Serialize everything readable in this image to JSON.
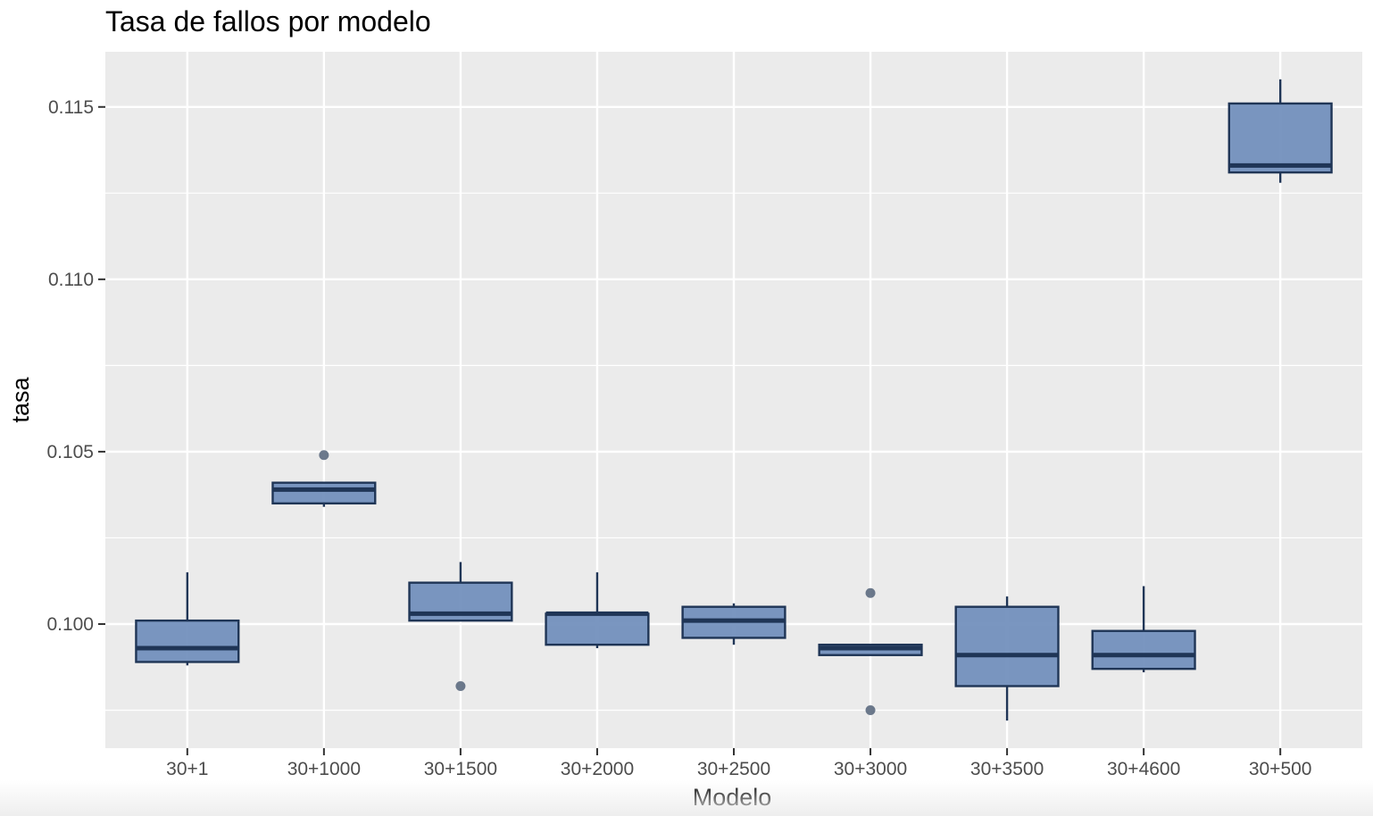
{
  "chart_data": {
    "type": "box",
    "title": "Tasa de fallos por modelo",
    "xlabel": "Modelo",
    "ylabel": "tasa",
    "ylim": [
      0.0964,
      0.1166
    ],
    "y_ticks": [
      "0.100",
      "0.105",
      "0.110",
      "0.115"
    ],
    "grid": true,
    "colors": {
      "panel_background": "#ebebeb",
      "grid": "#ffffff",
      "box_fill": "#7390bd",
      "box_line": "#1f3556",
      "outlier": "#5c6a80"
    },
    "categories": [
      "30+1",
      "30+1000",
      "30+1500",
      "30+2000",
      "30+2500",
      "30+3000",
      "30+3500",
      "30+4600",
      "30+500"
    ],
    "boxes": [
      {
        "category": "30+1",
        "whisker_low": 0.0988,
        "q1": 0.0989,
        "median": 0.0993,
        "q3": 0.1001,
        "whisker_high": 0.1015,
        "outliers": []
      },
      {
        "category": "30+1000",
        "whisker_low": 0.1034,
        "q1": 0.1035,
        "median": 0.1039,
        "q3": 0.1041,
        "whisker_high": 0.1041,
        "outliers": [
          0.1049
        ]
      },
      {
        "category": "30+1500",
        "whisker_low": 0.1001,
        "q1": 0.1001,
        "median": 0.1003,
        "q3": 0.1012,
        "whisker_high": 0.1018,
        "outliers": [
          0.0982
        ]
      },
      {
        "category": "30+2000",
        "whisker_low": 0.0993,
        "q1": 0.0994,
        "median": 0.1003,
        "q3": 0.1003,
        "whisker_high": 0.1015,
        "outliers": []
      },
      {
        "category": "30+2500",
        "whisker_low": 0.0994,
        "q1": 0.0996,
        "median": 0.1001,
        "q3": 0.1005,
        "whisker_high": 0.1006,
        "outliers": []
      },
      {
        "category": "30+3000",
        "whisker_low": 0.0991,
        "q1": 0.0991,
        "median": 0.0993,
        "q3": 0.0994,
        "whisker_high": 0.0994,
        "outliers": [
          0.1009,
          0.0975
        ]
      },
      {
        "category": "30+3500",
        "whisker_low": 0.0972,
        "q1": 0.0982,
        "median": 0.0991,
        "q3": 0.1005,
        "whisker_high": 0.1008,
        "outliers": []
      },
      {
        "category": "30+4600",
        "whisker_low": 0.0986,
        "q1": 0.0987,
        "median": 0.0991,
        "q3": 0.0998,
        "whisker_high": 0.1011,
        "outliers": []
      },
      {
        "category": "30+500",
        "whisker_low": 0.1128,
        "q1": 0.1131,
        "median": 0.1133,
        "q3": 0.1151,
        "whisker_high": 0.1158,
        "outliers": []
      }
    ]
  }
}
